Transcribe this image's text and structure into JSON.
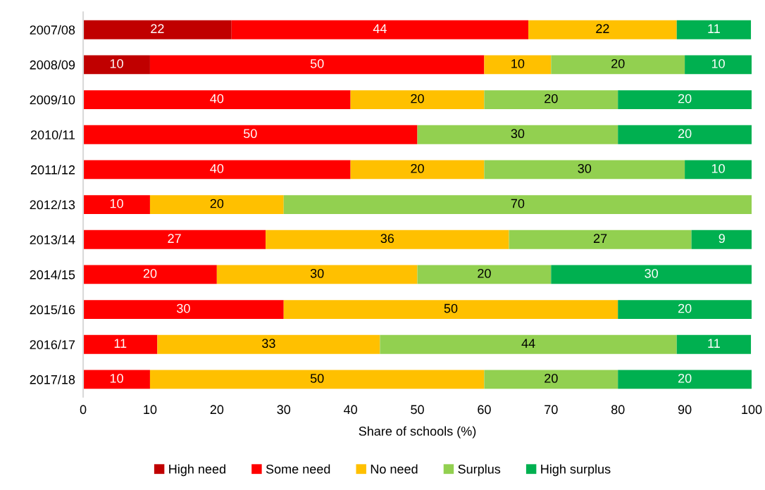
{
  "chart_data": {
    "type": "bar",
    "orientation": "horizontal",
    "stacked": true,
    "categories": [
      "2007/08",
      "2008/09",
      "2009/10",
      "2010/11",
      "2011/12",
      "2012/13",
      "2013/14",
      "2014/15",
      "2015/16",
      "2016/17",
      "2017/18"
    ],
    "series": [
      {
        "name": "High need",
        "color": "#c00000",
        "values": [
          22.2,
          10,
          null,
          null,
          null,
          null,
          null,
          null,
          null,
          null,
          null
        ],
        "value_labels": [
          "22",
          "10",
          null,
          null,
          null,
          null,
          null,
          null,
          null,
          null,
          null
        ]
      },
      {
        "name": "Some need",
        "color": "#ff0000",
        "values": [
          44.4,
          50,
          40,
          50,
          40,
          10,
          27.3,
          20,
          30,
          11.1,
          10
        ],
        "value_labels": [
          "44",
          "50",
          "40",
          "50",
          "40",
          "10",
          "27",
          "20",
          "30",
          "11",
          "10"
        ]
      },
      {
        "name": "No need",
        "color": "#ffc000",
        "values": [
          22.2,
          10,
          20,
          null,
          20,
          20,
          36.4,
          30,
          50,
          33.3,
          50
        ],
        "value_labels": [
          "22",
          "10",
          "20",
          null,
          "20",
          "20",
          "36",
          "30",
          "50",
          "33",
          "50"
        ]
      },
      {
        "name": "Surplus",
        "color": "#92d050",
        "values": [
          null,
          20,
          20,
          30,
          30,
          70,
          27.3,
          20,
          null,
          44.4,
          20
        ],
        "value_labels": [
          null,
          "20",
          "20",
          "30",
          "30",
          "70",
          "27",
          "20",
          null,
          "44",
          "20"
        ]
      },
      {
        "name": "High surplus",
        "color": "#00b050",
        "values": [
          11.1,
          10,
          20,
          20,
          10,
          null,
          9.1,
          30,
          20,
          11.1,
          20
        ],
        "value_labels": [
          "11",
          "10",
          "20",
          "20",
          "10",
          null,
          "9",
          "30",
          "20",
          "11",
          "20"
        ]
      }
    ],
    "xlim": [
      0,
      100
    ],
    "xticks": [
      0,
      10,
      20,
      30,
      40,
      50,
      60,
      70,
      80,
      90,
      100
    ],
    "xlabel": "Share of schools (%)",
    "legend": "bottom"
  }
}
